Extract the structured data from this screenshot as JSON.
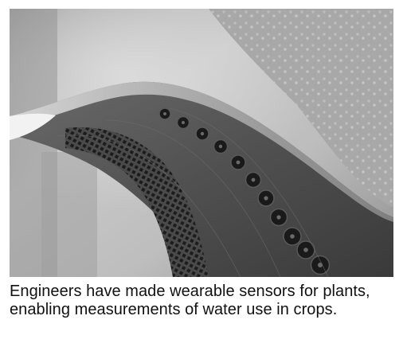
{
  "figure": {
    "photo_subject": "leaf-with-wearable-sensor",
    "caption": "Engineers have made wearable sensors for plants, enabling measurements of water use in crops."
  }
}
